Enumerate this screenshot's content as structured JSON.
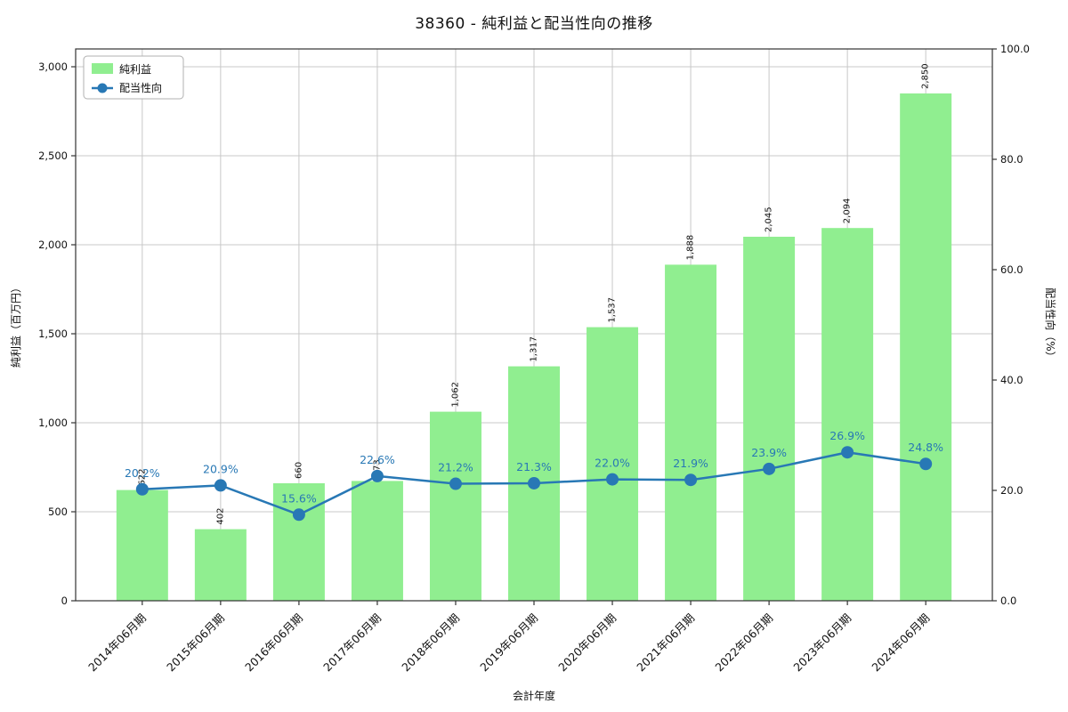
{
  "title": "38360 - 純利益と配当性向の推移",
  "chart_data": {
    "type": "bar+line",
    "title": "38360 - 純利益と配当性向の推移",
    "xlabel": "会計年度",
    "ylabel_left": "純利益（百万円）",
    "ylabel_right": "配当性向（%）",
    "categories": [
      "2014年06月期",
      "2015年06月期",
      "2016年06月期",
      "2017年06月期",
      "2018年06月期",
      "2019年06月期",
      "2020年06月期",
      "2021年06月期",
      "2022年06月期",
      "2023年06月期",
      "2024年06月期"
    ],
    "series": [
      {
        "name": "純利益",
        "type": "bar",
        "axis": "left",
        "color": "#90ee90",
        "values": [
          622,
          402,
          660,
          673,
          1062,
          1317,
          1537,
          1888,
          2045,
          2094,
          2850
        ],
        "labels": [
          "622",
          "402",
          "660",
          "673",
          "1,062",
          "1,317",
          "1,537",
          "1,888",
          "2,045",
          "2,094",
          "2,850"
        ]
      },
      {
        "name": "配当性向",
        "type": "line",
        "axis": "right",
        "color": "#2878b5",
        "values": [
          20.2,
          20.9,
          15.6,
          22.6,
          21.2,
          21.3,
          22.0,
          21.9,
          23.9,
          26.9,
          24.8
        ],
        "labels": [
          "20.2%",
          "20.9%",
          "15.6%",
          "22.6%",
          "21.2%",
          "21.3%",
          "22.0%",
          "21.9%",
          "23.9%",
          "26.9%",
          "24.8%"
        ]
      }
    ],
    "ylim_left": [
      0,
      3100
    ],
    "ylim_right": [
      0,
      100
    ],
    "yticks_left_labels": [
      "0",
      "500",
      "1,000",
      "1,500",
      "2,000",
      "2,500",
      "3,000"
    ],
    "yticks_left_values": [
      0,
      500,
      1000,
      1500,
      2000,
      2500,
      3000
    ],
    "yticks_right_labels": [
      "0.0",
      "20.0",
      "40.0",
      "60.0",
      "80.0",
      "100.0"
    ],
    "yticks_right_values": [
      0,
      20,
      40,
      60,
      80,
      100
    ],
    "grid": true,
    "legend_position": "top-left",
    "legend_entries": [
      "純利益",
      "配当性向"
    ]
  },
  "colors": {
    "bar": "#90ee90",
    "line": "#2878b5",
    "grid": "#c8c8c8",
    "spine": "#333333",
    "text": "#111111"
  }
}
